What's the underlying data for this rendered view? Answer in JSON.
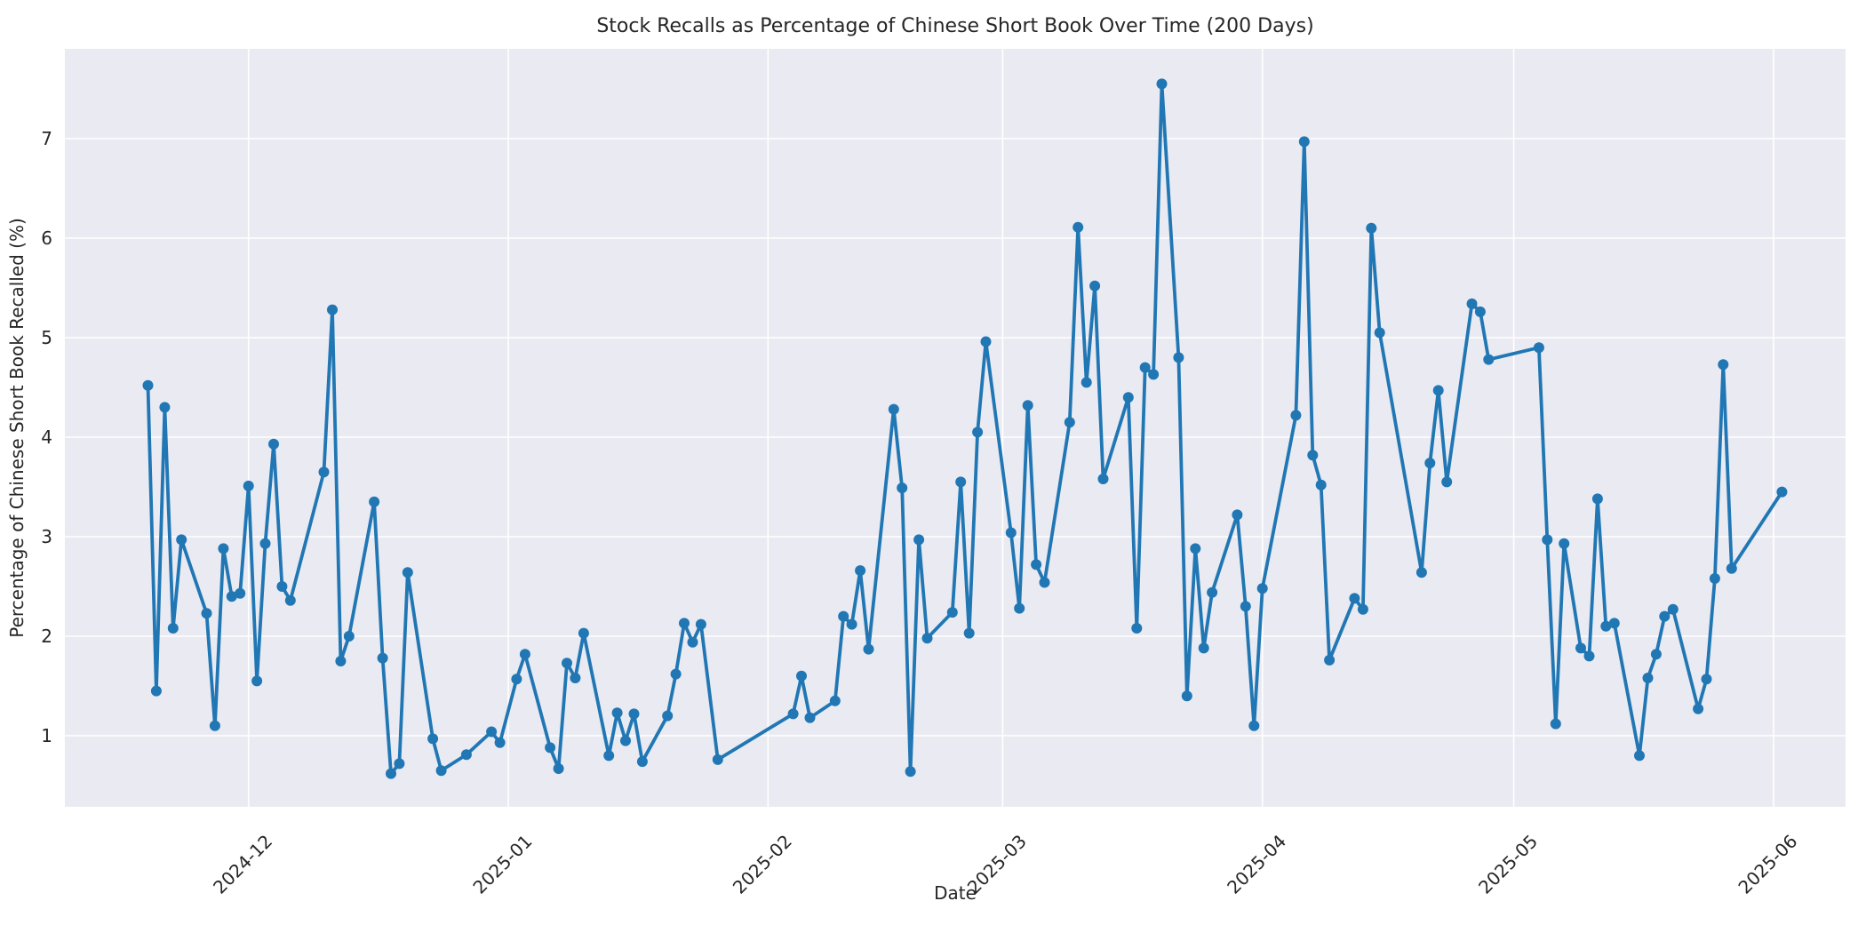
{
  "chart_data": {
    "type": "line",
    "title": "Stock Recalls as Percentage of Chinese Short Book Over Time (200 Days)",
    "xlabel": "Date",
    "ylabel": "Percentage of Chinese Short Book Recalled (%)",
    "legend": null,
    "grid": true,
    "marker": "circle",
    "line_color": "#2077b4",
    "background_color": "#eaeaf2",
    "text_color": "#262626",
    "ylim": [
      0.25,
      7.95
    ],
    "y_ticks": [
      1,
      2,
      3,
      4,
      5,
      6,
      7
    ],
    "x_ticks": [
      {
        "label": "2024-12",
        "date": "2024-12-01"
      },
      {
        "label": "2025-01",
        "date": "2025-01-01"
      },
      {
        "label": "2025-02",
        "date": "2025-02-01"
      },
      {
        "label": "2025-03",
        "date": "2025-03-01"
      },
      {
        "label": "2025-04",
        "date": "2025-04-01"
      },
      {
        "label": "2025-05",
        "date": "2025-05-01"
      },
      {
        "label": "2025-06",
        "date": "2025-06-01"
      }
    ],
    "x_tick_rotation": 45,
    "series": [
      {
        "name": "recall_pct",
        "points": [
          {
            "date": "2024-11-19",
            "value": 4.52
          },
          {
            "date": "2024-11-20",
            "value": 1.45
          },
          {
            "date": "2024-11-21",
            "value": 4.3
          },
          {
            "date": "2024-11-22",
            "value": 2.08
          },
          {
            "date": "2024-11-23",
            "value": 2.97
          },
          {
            "date": "2024-11-26",
            "value": 2.23
          },
          {
            "date": "2024-11-27",
            "value": 1.1
          },
          {
            "date": "2024-11-28",
            "value": 2.88
          },
          {
            "date": "2024-11-29",
            "value": 2.4
          },
          {
            "date": "2024-11-30",
            "value": 2.43
          },
          {
            "date": "2024-12-01",
            "value": 3.51
          },
          {
            "date": "2024-12-02",
            "value": 1.55
          },
          {
            "date": "2024-12-03",
            "value": 2.93
          },
          {
            "date": "2024-12-04",
            "value": 3.93
          },
          {
            "date": "2024-12-05",
            "value": 2.5
          },
          {
            "date": "2024-12-06",
            "value": 2.36
          },
          {
            "date": "2024-12-10",
            "value": 3.65
          },
          {
            "date": "2024-12-11",
            "value": 5.28
          },
          {
            "date": "2024-12-12",
            "value": 1.75
          },
          {
            "date": "2024-12-13",
            "value": 2.0
          },
          {
            "date": "2024-12-16",
            "value": 3.35
          },
          {
            "date": "2024-12-17",
            "value": 1.78
          },
          {
            "date": "2024-12-18",
            "value": 0.62
          },
          {
            "date": "2024-12-19",
            "value": 0.72
          },
          {
            "date": "2024-12-20",
            "value": 2.64
          },
          {
            "date": "2024-12-23",
            "value": 0.97
          },
          {
            "date": "2024-12-24",
            "value": 0.65
          },
          {
            "date": "2024-12-27",
            "value": 0.81
          },
          {
            "date": "2024-12-30",
            "value": 1.04
          },
          {
            "date": "2024-12-31",
            "value": 0.93
          },
          {
            "date": "2025-01-02",
            "value": 1.57
          },
          {
            "date": "2025-01-03",
            "value": 1.82
          },
          {
            "date": "2025-01-06",
            "value": 0.88
          },
          {
            "date": "2025-01-07",
            "value": 0.67
          },
          {
            "date": "2025-01-08",
            "value": 1.73
          },
          {
            "date": "2025-01-09",
            "value": 1.58
          },
          {
            "date": "2025-01-10",
            "value": 2.03
          },
          {
            "date": "2025-01-13",
            "value": 0.8
          },
          {
            "date": "2025-01-14",
            "value": 1.23
          },
          {
            "date": "2025-01-15",
            "value": 0.95
          },
          {
            "date": "2025-01-16",
            "value": 1.22
          },
          {
            "date": "2025-01-17",
            "value": 0.74
          },
          {
            "date": "2025-01-20",
            "value": 1.2
          },
          {
            "date": "2025-01-21",
            "value": 1.62
          },
          {
            "date": "2025-01-22",
            "value": 2.13
          },
          {
            "date": "2025-01-23",
            "value": 1.94
          },
          {
            "date": "2025-01-24",
            "value": 2.12
          },
          {
            "date": "2025-01-26",
            "value": 0.76
          },
          {
            "date": "2025-02-04",
            "value": 1.22
          },
          {
            "date": "2025-02-05",
            "value": 1.6
          },
          {
            "date": "2025-02-06",
            "value": 1.18
          },
          {
            "date": "2025-02-09",
            "value": 1.35
          },
          {
            "date": "2025-02-10",
            "value": 2.2
          },
          {
            "date": "2025-02-11",
            "value": 2.12
          },
          {
            "date": "2025-02-12",
            "value": 2.66
          },
          {
            "date": "2025-02-13",
            "value": 1.87
          },
          {
            "date": "2025-02-16",
            "value": 4.28
          },
          {
            "date": "2025-02-17",
            "value": 3.49
          },
          {
            "date": "2025-02-18",
            "value": 0.64
          },
          {
            "date": "2025-02-19",
            "value": 2.97
          },
          {
            "date": "2025-02-20",
            "value": 1.98
          },
          {
            "date": "2025-02-23",
            "value": 2.24
          },
          {
            "date": "2025-02-24",
            "value": 3.55
          },
          {
            "date": "2025-02-25",
            "value": 2.03
          },
          {
            "date": "2025-02-26",
            "value": 4.05
          },
          {
            "date": "2025-02-27",
            "value": 4.96
          },
          {
            "date": "2025-03-02",
            "value": 3.04
          },
          {
            "date": "2025-03-03",
            "value": 2.28
          },
          {
            "date": "2025-03-04",
            "value": 4.32
          },
          {
            "date": "2025-03-05",
            "value": 2.72
          },
          {
            "date": "2025-03-06",
            "value": 2.54
          },
          {
            "date": "2025-03-09",
            "value": 4.15
          },
          {
            "date": "2025-03-10",
            "value": 6.11
          },
          {
            "date": "2025-03-11",
            "value": 4.55
          },
          {
            "date": "2025-03-12",
            "value": 5.52
          },
          {
            "date": "2025-03-13",
            "value": 3.58
          },
          {
            "date": "2025-03-16",
            "value": 4.4
          },
          {
            "date": "2025-03-17",
            "value": 2.08
          },
          {
            "date": "2025-03-18",
            "value": 4.7
          },
          {
            "date": "2025-03-19",
            "value": 4.63
          },
          {
            "date": "2025-03-20",
            "value": 7.55
          },
          {
            "date": "2025-03-22",
            "value": 4.8
          },
          {
            "date": "2025-03-23",
            "value": 1.4
          },
          {
            "date": "2025-03-24",
            "value": 2.88
          },
          {
            "date": "2025-03-25",
            "value": 1.88
          },
          {
            "date": "2025-03-26",
            "value": 2.44
          },
          {
            "date": "2025-03-29",
            "value": 3.22
          },
          {
            "date": "2025-03-30",
            "value": 2.3
          },
          {
            "date": "2025-03-31",
            "value": 1.1
          },
          {
            "date": "2025-04-01",
            "value": 2.48
          },
          {
            "date": "2025-04-05",
            "value": 4.22
          },
          {
            "date": "2025-04-06",
            "value": 6.97
          },
          {
            "date": "2025-04-07",
            "value": 3.82
          },
          {
            "date": "2025-04-08",
            "value": 3.52
          },
          {
            "date": "2025-04-09",
            "value": 1.76
          },
          {
            "date": "2025-04-12",
            "value": 2.38
          },
          {
            "date": "2025-04-13",
            "value": 2.27
          },
          {
            "date": "2025-04-14",
            "value": 6.1
          },
          {
            "date": "2025-04-15",
            "value": 5.05
          },
          {
            "date": "2025-04-20",
            "value": 2.64
          },
          {
            "date": "2025-04-21",
            "value": 3.74
          },
          {
            "date": "2025-04-22",
            "value": 4.47
          },
          {
            "date": "2025-04-23",
            "value": 3.55
          },
          {
            "date": "2025-04-26",
            "value": 5.34
          },
          {
            "date": "2025-04-27",
            "value": 5.26
          },
          {
            "date": "2025-04-28",
            "value": 4.78
          },
          {
            "date": "2025-05-04",
            "value": 4.9
          },
          {
            "date": "2025-05-05",
            "value": 2.97
          },
          {
            "date": "2025-05-06",
            "value": 1.12
          },
          {
            "date": "2025-05-07",
            "value": 2.93
          },
          {
            "date": "2025-05-09",
            "value": 1.88
          },
          {
            "date": "2025-05-10",
            "value": 1.8
          },
          {
            "date": "2025-05-11",
            "value": 3.38
          },
          {
            "date": "2025-05-12",
            "value": 2.1
          },
          {
            "date": "2025-05-13",
            "value": 2.13
          },
          {
            "date": "2025-05-16",
            "value": 0.8
          },
          {
            "date": "2025-05-17",
            "value": 1.58
          },
          {
            "date": "2025-05-18",
            "value": 1.82
          },
          {
            "date": "2025-05-19",
            "value": 2.2
          },
          {
            "date": "2025-05-20",
            "value": 2.27
          },
          {
            "date": "2025-05-23",
            "value": 1.27
          },
          {
            "date": "2025-05-24",
            "value": 1.57
          },
          {
            "date": "2025-05-25",
            "value": 2.58
          },
          {
            "date": "2025-05-26",
            "value": 4.73
          },
          {
            "date": "2025-05-27",
            "value": 2.68
          },
          {
            "date": "2025-06-02",
            "value": 3.45
          }
        ]
      }
    ]
  }
}
